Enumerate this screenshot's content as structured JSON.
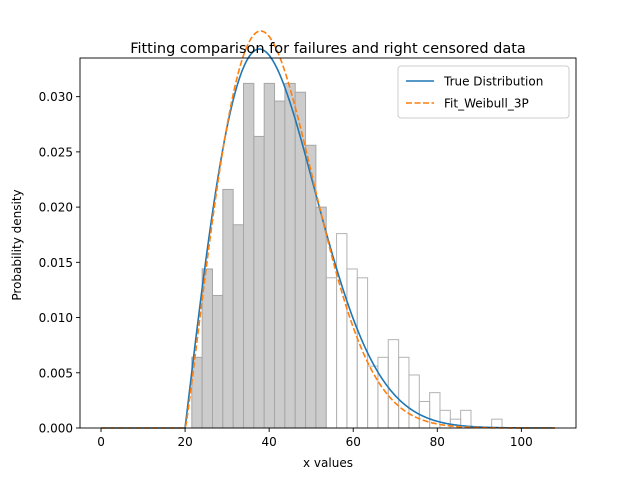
{
  "chart_data": {
    "type": "histogram+line",
    "title": "Fitting comparison for failures and right censored data",
    "xlabel": "x values",
    "ylabel": "Probability density",
    "xlim": [
      -5,
      113
    ],
    "ylim": [
      0,
      0.0335
    ],
    "xticks": [
      0,
      20,
      40,
      60,
      80,
      100
    ],
    "yticks": [
      0.0,
      0.005,
      0.01,
      0.015,
      0.02,
      0.025,
      0.03
    ],
    "ytick_format": 3,
    "legend_position": "top-right",
    "histogram": {
      "bin_width": 2.46,
      "failures": {
        "fill": "#cccccc",
        "stroke": "#a6a6a6",
        "bins": [
          {
            "x0": 21.6,
            "height": 0.0064
          },
          {
            "x0": 24.06,
            "height": 0.0144
          },
          {
            "x0": 26.52,
            "height": 0.012
          },
          {
            "x0": 28.98,
            "height": 0.0216
          },
          {
            "x0": 31.44,
            "height": 0.0184
          },
          {
            "x0": 33.9,
            "height": 0.0312
          },
          {
            "x0": 36.36,
            "height": 0.0264
          },
          {
            "x0": 38.82,
            "height": 0.0312
          },
          {
            "x0": 41.28,
            "height": 0.0296
          },
          {
            "x0": 43.74,
            "height": 0.0312
          },
          {
            "x0": 46.2,
            "height": 0.0304
          },
          {
            "x0": 48.66,
            "height": 0.0256
          },
          {
            "x0": 51.12,
            "height": 0.02
          }
        ]
      },
      "right_censored": {
        "fill": "none",
        "stroke": "#b3b3b3",
        "bins": [
          {
            "x0": 53.58,
            "height": 0.0136
          },
          {
            "x0": 56.04,
            "height": 0.0176
          },
          {
            "x0": 58.5,
            "height": 0.0144
          },
          {
            "x0": 60.96,
            "height": 0.0136
          },
          {
            "x0": 63.42,
            "height": 0.0056
          },
          {
            "x0": 65.88,
            "height": 0.0064
          },
          {
            "x0": 68.34,
            "height": 0.008
          },
          {
            "x0": 70.8,
            "height": 0.0064
          },
          {
            "x0": 73.26,
            "height": 0.0048
          },
          {
            "x0": 75.72,
            "height": 0.0024
          },
          {
            "x0": 78.18,
            "height": 0.0032
          },
          {
            "x0": 80.64,
            "height": 0.0016
          },
          {
            "x0": 83.1,
            "height": 0.0008
          },
          {
            "x0": 85.56,
            "height": 0.0016
          },
          {
            "x0": 88.02,
            "height": 0.0
          },
          {
            "x0": 90.48,
            "height": 0.0
          },
          {
            "x0": 92.94,
            "height": 0.0008
          }
        ]
      }
    },
    "series": [
      {
        "name": "True Distribution",
        "color": "#1f77b4",
        "dash": "solid",
        "weibull_params": {
          "alpha": 25,
          "beta": 2,
          "gamma": 20
        },
        "x_range": [
          0,
          108
        ]
      },
      {
        "name": "Fit_Weibull_3P",
        "color": "#ff7f0e",
        "dash": "dashed",
        "weibull_params": {
          "alpha": 24.5,
          "beta": 2.08,
          "gamma": 20.1
        },
        "x_range": [
          0,
          108
        ]
      }
    ]
  }
}
